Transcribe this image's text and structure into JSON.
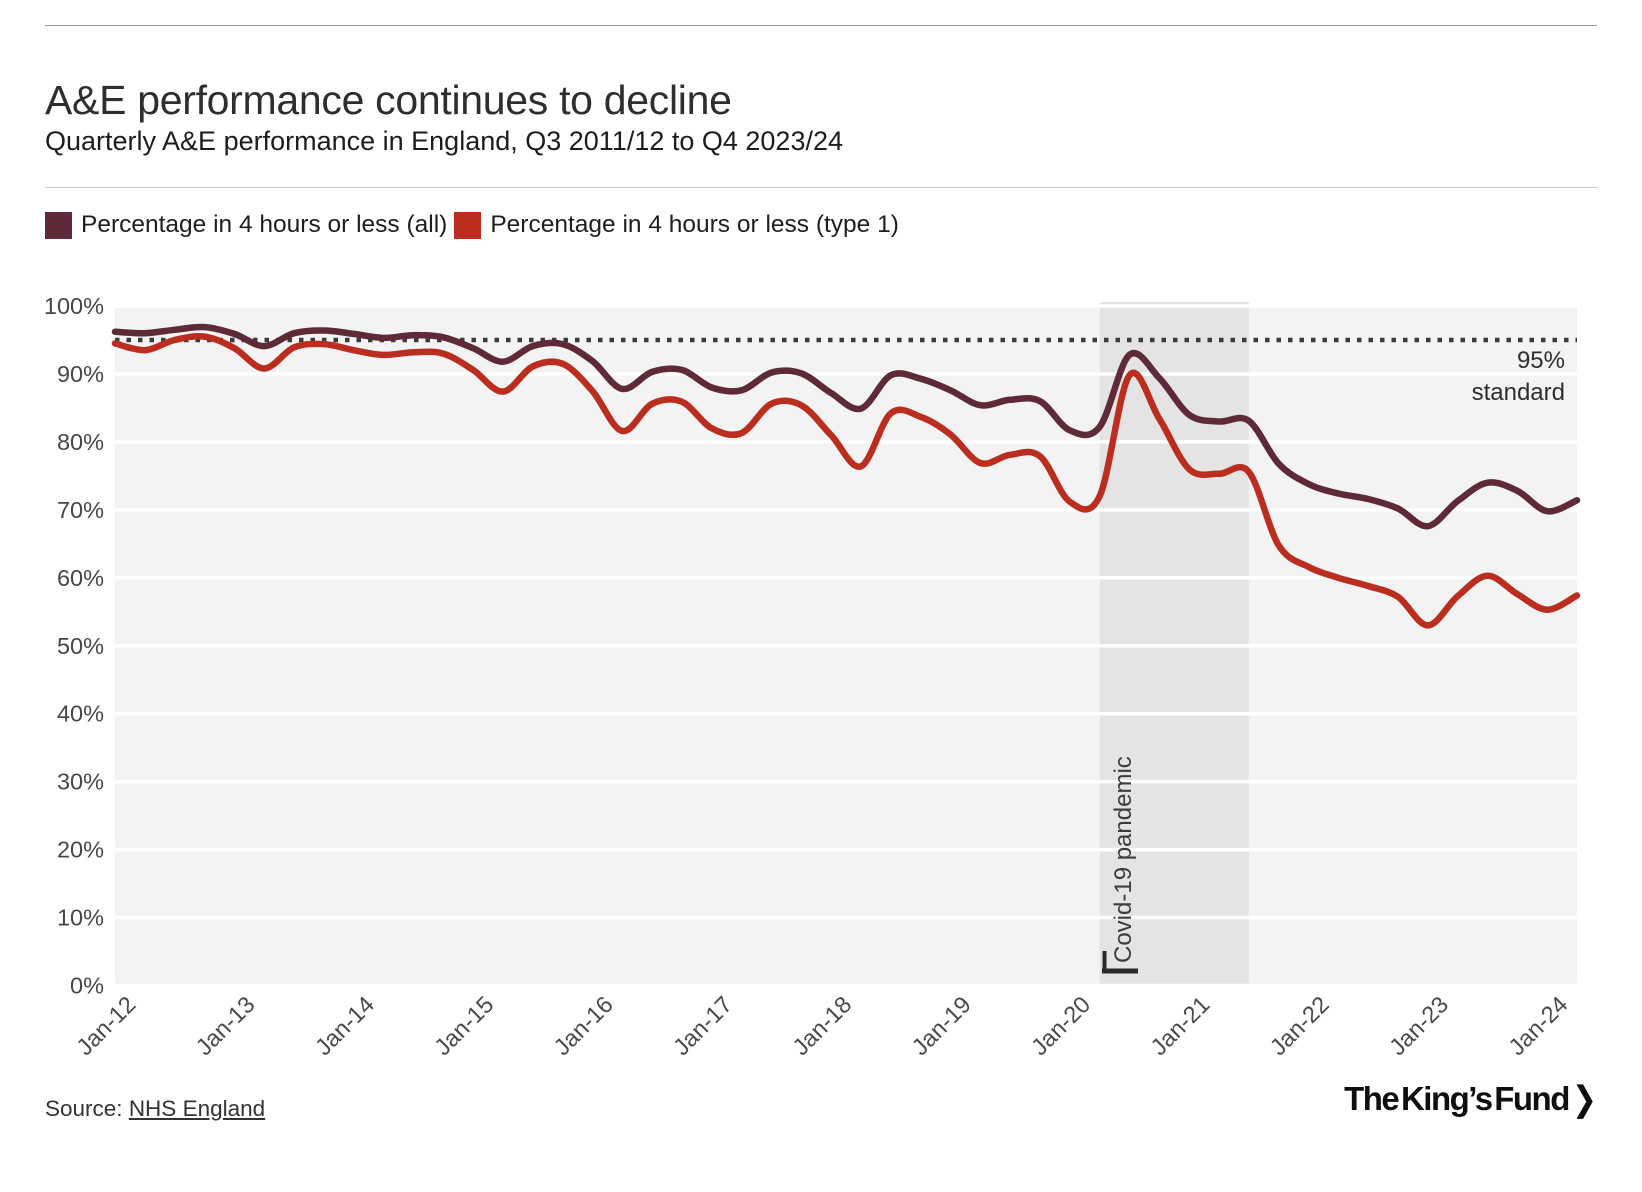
{
  "page": {
    "title": "A&E performance continues to decline",
    "subtitle": "Quarterly A&E performance in England, Q3 2011/12 to Q4 2023/24",
    "source_label": "Source:",
    "source_link": "NHS England",
    "logo_text": "The King’s Fund",
    "logo_chevron": "❯"
  },
  "legend": {
    "items": [
      {
        "label": "Percentage in 4 hours or less (all)",
        "color": "#5f2a38"
      },
      {
        "label": "Percentage in 4 hours or less (type 1)",
        "color": "#bb2e1f"
      }
    ]
  },
  "chart_data": {
    "type": "line",
    "title": "A&E performance continues to decline",
    "subtitle": "Quarterly A&E performance in England, Q3 2011/12 to Q4 2023/24",
    "xlabel": "",
    "ylabel": "",
    "ylim": [
      0,
      100
    ],
    "grid": "horizontal",
    "plot_background": "#f3f3f3",
    "gridline_color": "#ffffff",
    "x_tick_labels": [
      "Jan-12",
      "Jan-13",
      "Jan-14",
      "Jan-15",
      "Jan-16",
      "Jan-17",
      "Jan-18",
      "Jan-19",
      "Jan-20",
      "Jan-21",
      "Jan-22",
      "Jan-23",
      "Jan-24"
    ],
    "y_tick_labels": [
      "0%",
      "10%",
      "20%",
      "30%",
      "40%",
      "50%",
      "60%",
      "70%",
      "80%",
      "90%",
      "100%"
    ],
    "x_quarters": [
      "Q3 2011/12",
      "Q4 2011/12",
      "Q1 2012/13",
      "Q2 2012/13",
      "Q3 2012/13",
      "Q4 2012/13",
      "Q1 2013/14",
      "Q2 2013/14",
      "Q3 2013/14",
      "Q4 2013/14",
      "Q1 2014/15",
      "Q2 2014/15",
      "Q3 2014/15",
      "Q4 2014/15",
      "Q1 2015/16",
      "Q2 2015/16",
      "Q3 2015/16",
      "Q4 2015/16",
      "Q1 2016/17",
      "Q2 2016/17",
      "Q3 2016/17",
      "Q4 2016/17",
      "Q1 2017/18",
      "Q2 2017/18",
      "Q3 2017/18",
      "Q4 2017/18",
      "Q1 2018/19",
      "Q2 2018/19",
      "Q3 2018/19",
      "Q4 2018/19",
      "Q1 2019/20",
      "Q2 2019/20",
      "Q3 2019/20",
      "Q4 2019/20",
      "Q1 2020/21",
      "Q2 2020/21",
      "Q3 2020/21",
      "Q4 2020/21",
      "Q1 2021/22",
      "Q2 2021/22",
      "Q3 2021/22",
      "Q4 2021/22",
      "Q1 2022/23",
      "Q2 2022/23",
      "Q3 2022/23",
      "Q4 2022/23",
      "Q1 2023/24",
      "Q2 2023/24",
      "Q3 2023/24",
      "Q4 2023/24"
    ],
    "series": [
      {
        "name": "Percentage in 4 hours or less (all)",
        "color": "#5f2a38",
        "values": [
          96.2,
          96.0,
          96.5,
          96.9,
          95.9,
          94.1,
          96.0,
          96.4,
          95.9,
          95.3,
          95.7,
          95.4,
          93.8,
          91.8,
          94.1,
          94.4,
          91.9,
          87.8,
          90.3,
          90.6,
          88.0,
          87.6,
          90.2,
          90.1,
          87.2,
          84.9,
          89.8,
          89.3,
          87.6,
          85.4,
          86.2,
          86.0,
          81.7,
          82.2,
          92.8,
          89.4,
          84.0,
          83.0,
          83.1,
          76.8,
          73.8,
          72.4,
          71.6,
          70.2,
          67.6,
          71.3,
          74.0,
          72.8,
          69.8,
          71.4
        ]
      },
      {
        "name": "Percentage in 4 hours or less (type 1)",
        "color": "#bb2e1f",
        "values": [
          94.5,
          93.5,
          95.0,
          95.5,
          93.8,
          90.8,
          93.9,
          94.4,
          93.5,
          92.8,
          93.2,
          93.0,
          90.6,
          87.4,
          91.1,
          91.5,
          87.5,
          81.6,
          85.6,
          85.9,
          82.0,
          81.3,
          85.6,
          85.4,
          81.0,
          76.4,
          84.2,
          83.7,
          81.1,
          76.9,
          78.1,
          77.9,
          71.2,
          72.0,
          89.8,
          83.4,
          76.0,
          75.3,
          75.6,
          64.8,
          61.6,
          60.0,
          58.8,
          57.2,
          53.0,
          57.3,
          60.3,
          57.6,
          55.3,
          57.4
        ]
      }
    ],
    "reference_line": {
      "value": 95,
      "style": "dotted",
      "color": "#3b3b3b",
      "label_line1": "95%",
      "label_line2": "standard"
    },
    "covid_band": {
      "label": "Covid-19 pandemic",
      "start_quarter": "Q4 2019/20",
      "end_quarter": "Q1 2021/22",
      "start_index": 33,
      "end_index": 38,
      "color": "#e4e4e4"
    }
  }
}
